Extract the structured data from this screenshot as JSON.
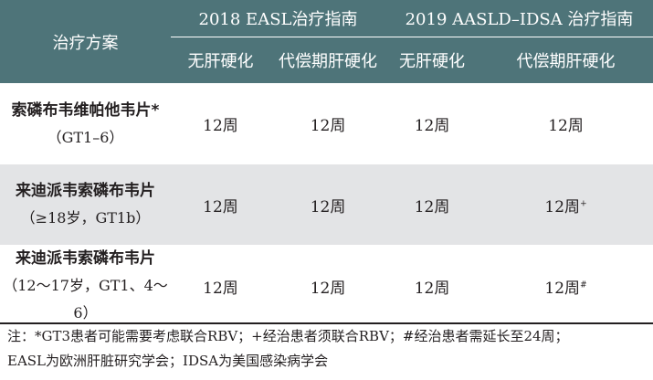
{
  "header": {
    "regimen_label": "治疗方案",
    "guideline_easl": "2018 EASL治疗指南",
    "guideline_aasld": "2019 AASLD–IDSA 治疗指南",
    "sub_cols": [
      "无肝硬化",
      "代偿期肝硬化",
      "无肝硬化",
      "代偿期肝硬化"
    ]
  },
  "rows": [
    {
      "name": "索磷布韦维帕他韦片*",
      "scope": "（GT1–6）",
      "values": [
        "12周",
        "12周",
        "12周",
        "12周"
      ],
      "last_mark": ""
    },
    {
      "name": "来迪派韦索磷布韦片",
      "scope": "（≥18岁，GT1b）",
      "values": [
        "12周",
        "12周",
        "12周",
        "12周"
      ],
      "last_mark": "+"
    },
    {
      "name": "来迪派韦索磷布韦片",
      "scope": "（12～17岁，GT1、4～6）",
      "values": [
        "12周",
        "12周",
        "12周",
        "12周"
      ],
      "last_mark": "#"
    }
  ],
  "notes": {
    "line1": "注：*GT3患者可能需要考虑联合RBV；+经治患者须联合RBV；#经治患者需延长至24周；",
    "line2": "EASL为欧洲肝脏研究学会；IDSA为美国感染病学会"
  }
}
